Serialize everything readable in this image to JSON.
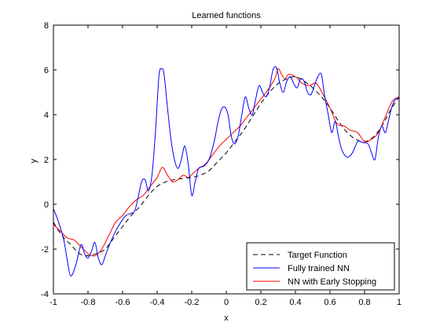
{
  "chart_data": {
    "type": "line",
    "title": "Learned functions",
    "xlabel": "x",
    "ylabel": "y",
    "xlim": [
      -1,
      1
    ],
    "ylim": [
      -4,
      8
    ],
    "xticks": [
      -1,
      -0.8,
      -0.6,
      -0.4,
      -0.2,
      0,
      0.2,
      0.4,
      0.6,
      0.8,
      1
    ],
    "yticks": [
      -4,
      -2,
      0,
      2,
      4,
      6,
      8
    ],
    "xtick_labels": [
      "-1",
      "-0.8",
      "-0.6",
      "-0.4",
      "-0.2",
      "0",
      "0.2",
      "0.4",
      "0.6",
      "0.8",
      "1"
    ],
    "ytick_labels": [
      "-4",
      "-2",
      "0",
      "2",
      "4",
      "6",
      "8"
    ],
    "grid": false,
    "legend_position": "bottom-right",
    "series": [
      {
        "name": "Target Function",
        "color": "#000000",
        "dash": "dashed",
        "x": [
          -1,
          -0.95,
          -0.9,
          -0.85,
          -0.8,
          -0.75,
          -0.7,
          -0.65,
          -0.6,
          -0.55,
          -0.5,
          -0.45,
          -0.4,
          -0.35,
          -0.3,
          -0.25,
          -0.2,
          -0.15,
          -0.1,
          -0.05,
          0,
          0.05,
          0.1,
          0.15,
          0.2,
          0.25,
          0.3,
          0.35,
          0.4,
          0.45,
          0.5,
          0.55,
          0.6,
          0.65,
          0.7,
          0.75,
          0.8,
          0.85,
          0.9,
          0.95,
          1
        ],
        "y": [
          -0.8,
          -1.4,
          -1.8,
          -2.2,
          -2.3,
          -2.2,
          -2.0,
          -1.5,
          -1.0,
          -0.5,
          -0.1,
          0.4,
          0.8,
          1.0,
          1.1,
          1.15,
          1.2,
          1.3,
          1.5,
          1.9,
          2.3,
          2.8,
          3.3,
          3.9,
          4.5,
          5.0,
          5.4,
          5.6,
          5.7,
          5.5,
          5.2,
          4.8,
          4.3,
          3.7,
          3.2,
          2.9,
          2.8,
          3.0,
          3.5,
          4.2,
          4.8
        ]
      },
      {
        "name": "Fully trained NN",
        "color": "#0000ff",
        "dash": "solid",
        "x": [
          -1,
          -0.97,
          -0.94,
          -0.92,
          -0.9,
          -0.87,
          -0.84,
          -0.82,
          -0.8,
          -0.78,
          -0.76,
          -0.74,
          -0.72,
          -0.7,
          -0.67,
          -0.64,
          -0.61,
          -0.58,
          -0.55,
          -0.53,
          -0.51,
          -0.49,
          -0.47,
          -0.45,
          -0.43,
          -0.41,
          -0.39,
          -0.375,
          -0.36,
          -0.34,
          -0.32,
          -0.3,
          -0.28,
          -0.26,
          -0.24,
          -0.22,
          -0.2,
          -0.18,
          -0.16,
          -0.13,
          -0.1,
          -0.07,
          -0.05,
          -0.03,
          -0.01,
          0.01,
          0.03,
          0.05,
          0.07,
          0.09,
          0.11,
          0.13,
          0.15,
          0.17,
          0.19,
          0.21,
          0.23,
          0.25,
          0.27,
          0.29,
          0.31,
          0.33,
          0.35,
          0.37,
          0.39,
          0.41,
          0.43,
          0.45,
          0.47,
          0.49,
          0.51,
          0.53,
          0.55,
          0.57,
          0.59,
          0.61,
          0.63,
          0.65,
          0.67,
          0.7,
          0.73,
          0.76,
          0.79,
          0.82,
          0.84,
          0.86,
          0.88,
          0.9,
          0.92,
          0.94,
          0.96,
          0.98,
          1
        ],
        "y": [
          -0.2,
          -0.8,
          -1.6,
          -2.5,
          -3.2,
          -2.7,
          -1.8,
          -2.2,
          -2.4,
          -2.1,
          -1.7,
          -2.4,
          -2.7,
          -2.3,
          -1.7,
          -1.2,
          -0.8,
          -0.5,
          -0.4,
          -0.3,
          0.3,
          1.0,
          1.1,
          0.6,
          1.3,
          3.2,
          5.7,
          6.05,
          5.8,
          4.3,
          2.9,
          2.0,
          1.6,
          2.0,
          2.6,
          1.8,
          0.4,
          1.0,
          1.6,
          1.7,
          2.0,
          2.8,
          3.6,
          4.2,
          4.35,
          4.0,
          3.0,
          2.7,
          3.1,
          4.0,
          4.8,
          4.3,
          4.0,
          4.7,
          5.3,
          5.0,
          4.8,
          5.2,
          6.0,
          6.1,
          5.4,
          5.0,
          5.5,
          5.7,
          5.4,
          5.2,
          5.6,
          5.5,
          5.0,
          4.9,
          5.3,
          5.7,
          5.8,
          4.8,
          4.0,
          3.2,
          3.7,
          3.0,
          2.4,
          2.1,
          2.3,
          2.8,
          2.75,
          2.7,
          2.3,
          2.0,
          3.0,
          3.5,
          3.2,
          3.8,
          4.4,
          4.7,
          4.7
        ]
      },
      {
        "name": "NN with Early Stopping",
        "color": "#ff0000",
        "dash": "solid",
        "x": [
          -1,
          -0.96,
          -0.92,
          -0.88,
          -0.84,
          -0.8,
          -0.76,
          -0.72,
          -0.68,
          -0.64,
          -0.6,
          -0.56,
          -0.52,
          -0.48,
          -0.44,
          -0.4,
          -0.37,
          -0.34,
          -0.31,
          -0.28,
          -0.25,
          -0.22,
          -0.19,
          -0.16,
          -0.12,
          -0.08,
          -0.04,
          0,
          0.04,
          0.08,
          0.12,
          0.16,
          0.2,
          0.24,
          0.28,
          0.3,
          0.32,
          0.34,
          0.36,
          0.4,
          0.44,
          0.48,
          0.52,
          0.56,
          0.6,
          0.64,
          0.68,
          0.72,
          0.76,
          0.8,
          0.84,
          0.88,
          0.92,
          0.96,
          1
        ],
        "y": [
          -0.9,
          -1.2,
          -1.5,
          -1.6,
          -1.9,
          -2.2,
          -2.3,
          -2.0,
          -1.4,
          -0.8,
          -0.5,
          -0.1,
          0.2,
          0.4,
          0.8,
          1.2,
          1.65,
          1.3,
          1.0,
          1.1,
          1.3,
          1.2,
          1.4,
          1.6,
          1.8,
          2.2,
          2.6,
          2.9,
          3.2,
          3.5,
          3.9,
          4.3,
          4.7,
          5.1,
          5.6,
          6.05,
          5.8,
          5.6,
          5.8,
          5.7,
          5.4,
          5.3,
          5.4,
          4.9,
          4.3,
          3.6,
          3.5,
          3.3,
          3.2,
          2.8,
          2.9,
          3.2,
          3.9,
          4.6,
          4.8
        ]
      }
    ]
  }
}
